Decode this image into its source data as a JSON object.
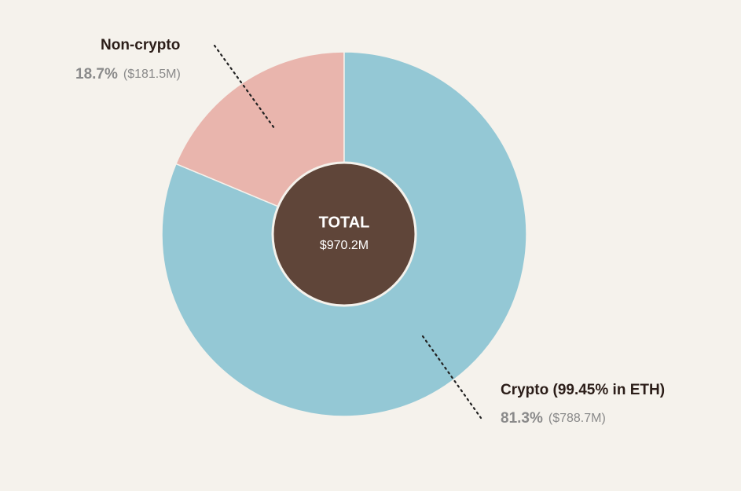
{
  "chart_data": {
    "type": "pie",
    "donut": true,
    "categories": [
      "Non-crypto",
      "Crypto (99.45% in ETH)"
    ],
    "values": [
      18.7,
      81.3
    ],
    "value_labels": [
      "18.7%",
      "81.3%"
    ],
    "amount_labels": [
      "($181.5M)",
      "($788.7M)"
    ],
    "colors": [
      "#e9b5ad",
      "#94c8d5"
    ],
    "center_title": "TOTAL",
    "center_value_label": "$970.2M",
    "center_color": "#5f4539"
  }
}
